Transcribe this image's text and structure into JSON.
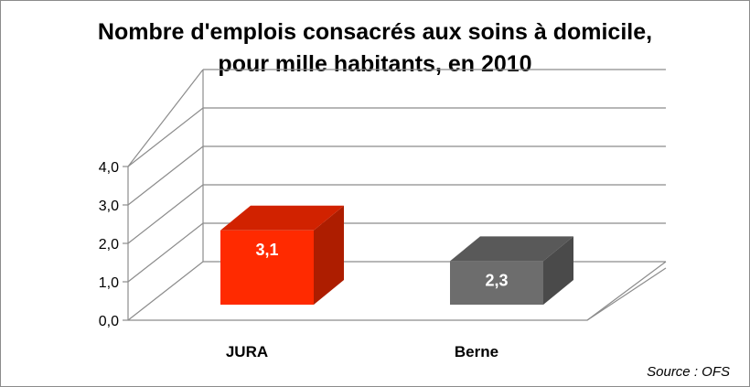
{
  "chart_data": {
    "type": "bar",
    "title_lines": [
      "Nombre d'emplois consacrés aux soins à domicile,",
      "pour mille habitants, en 2010"
    ],
    "categories": [
      "JURA",
      "Berne"
    ],
    "values": [
      3.1,
      2.3
    ],
    "data_labels": [
      "3,1",
      "2,3"
    ],
    "ylim": [
      0,
      4
    ],
    "y_ticks": [
      0,
      1,
      2,
      3,
      4
    ],
    "y_tick_labels": [
      "0,0",
      "1,0",
      "2,0",
      "3,0",
      "4,0"
    ],
    "bar_colors": [
      "#ff2a00",
      "#6d6d6d"
    ],
    "grid": true,
    "style": "3d",
    "source": "Source : OFS"
  }
}
